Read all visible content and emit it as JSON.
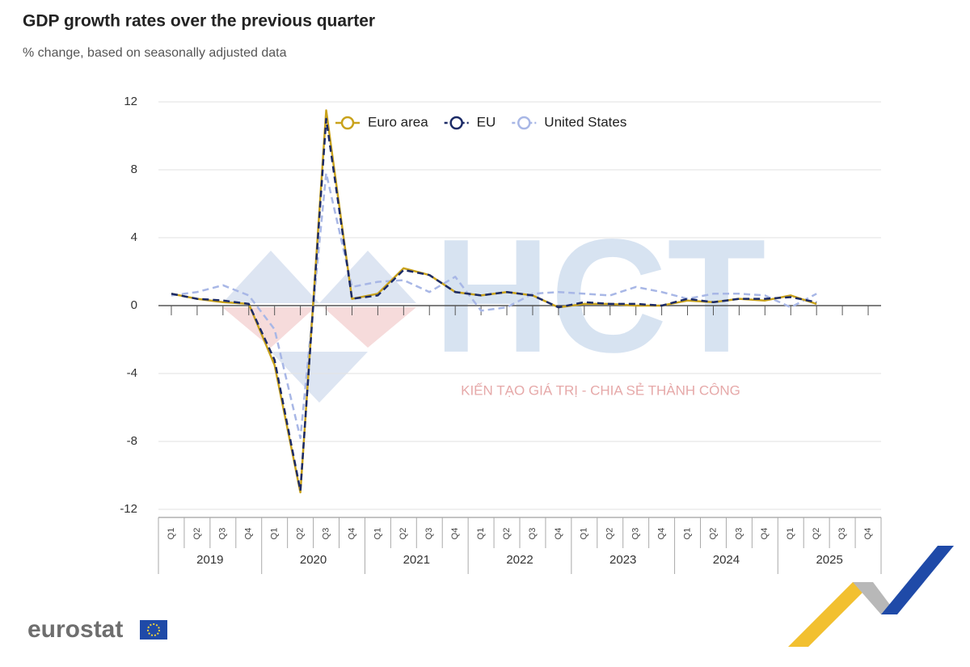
{
  "chart_data": {
    "type": "line",
    "title": "GDP growth rates over the previous quarter",
    "subtitle": "% change, based on seasonally adjusted data",
    "categories": [
      "Q1",
      "Q2",
      "Q3",
      "Q4",
      "Q1",
      "Q2",
      "Q3",
      "Q4",
      "Q1",
      "Q2",
      "Q3",
      "Q4",
      "Q1",
      "Q2",
      "Q3",
      "Q4",
      "Q1",
      "Q2",
      "Q3",
      "Q4",
      "Q1",
      "Q2",
      "Q3",
      "Q4",
      "Q1",
      "Q2",
      "Q3",
      "Q4"
    ],
    "years": [
      "2019",
      "2020",
      "2021",
      "2022",
      "2023",
      "2024",
      "2025"
    ],
    "series": [
      {
        "name": "Euro area",
        "color": "#c9a21b",
        "dash": false,
        "values": [
          0.7,
          0.4,
          0.2,
          0.1,
          -3.5,
          -11.0,
          11.5,
          0.4,
          0.7,
          2.2,
          1.8,
          0.8,
          0.6,
          0.8,
          0.6,
          -0.1,
          0.1,
          0.1,
          0.0,
          0.0,
          0.3,
          0.2,
          0.4,
          0.3,
          0.6,
          0.1,
          null,
          null
        ]
      },
      {
        "name": "EU",
        "color": "#1b2a66",
        "dash": true,
        "values": [
          0.7,
          0.4,
          0.3,
          0.1,
          -3.2,
          -10.9,
          11.0,
          0.4,
          0.6,
          2.1,
          1.8,
          0.8,
          0.6,
          0.8,
          0.6,
          -0.1,
          0.2,
          0.1,
          0.1,
          0.0,
          0.4,
          0.2,
          0.4,
          0.4,
          0.5,
          0.2,
          null,
          null
        ]
      },
      {
        "name": "United States",
        "color": "#a8b7e6",
        "dash": true,
        "values": [
          0.6,
          0.8,
          1.2,
          0.6,
          -1.4,
          -7.8,
          7.8,
          1.1,
          1.4,
          1.5,
          0.8,
          1.7,
          -0.3,
          -0.1,
          0.7,
          0.8,
          0.7,
          0.6,
          1.1,
          0.8,
          0.4,
          0.7,
          0.7,
          0.6,
          -0.1,
          0.7,
          null,
          null
        ]
      }
    ],
    "ylim": [
      -12,
      12
    ],
    "yticks": [
      -12,
      -8,
      -4,
      0,
      4,
      8,
      12
    ],
    "grid": true,
    "legend": "top"
  },
  "watermark": {
    "logo": "HCT",
    "tagline": "KIẾN TẠO GIÁ TRỊ - CHIA SẺ THÀNH CÔNG"
  },
  "footer": {
    "source": "eurostat"
  }
}
